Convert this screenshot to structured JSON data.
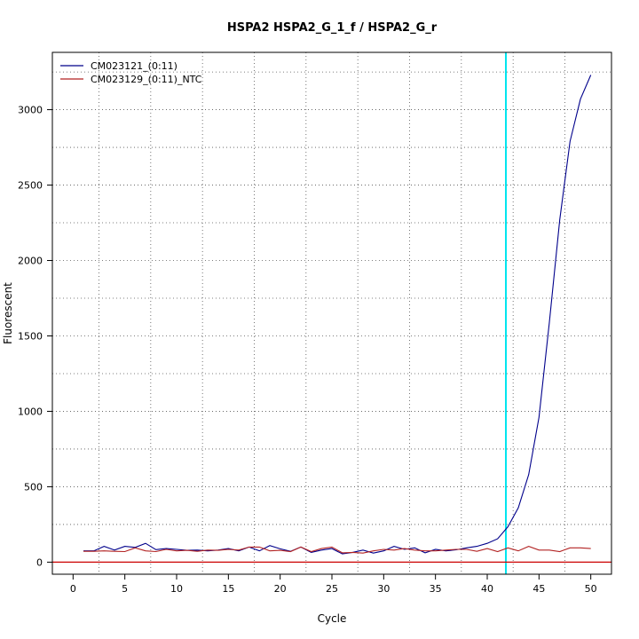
{
  "chart_data": {
    "type": "line",
    "title": "HSPA2  HSPA2_G_1_f / HSPA2_G_r",
    "xlabel": "Cycle",
    "ylabel": "Fluorescent",
    "xlim": [
      -2,
      52
    ],
    "ylim": [
      -80,
      3380
    ],
    "x_ticks": [
      0,
      5,
      10,
      15,
      20,
      25,
      30,
      35,
      40,
      45,
      50
    ],
    "y_ticks": [
      0,
      500,
      1000,
      1500,
      2000,
      2500,
      3000
    ],
    "grid": true,
    "legend_position": "top-left",
    "threshold_x": 41.8,
    "threshold_color": "#00e5ee",
    "baseline_y": 0,
    "baseline_color": "#cc0000",
    "series": [
      {
        "name": "CM023121_(0:11)",
        "color": "#00008b",
        "x": [
          1,
          2,
          3,
          4,
          5,
          6,
          7,
          8,
          9,
          10,
          11,
          12,
          13,
          14,
          15,
          16,
          17,
          18,
          19,
          20,
          21,
          22,
          23,
          24,
          25,
          26,
          27,
          28,
          29,
          30,
          31,
          32,
          33,
          34,
          35,
          36,
          37,
          38,
          39,
          40,
          41,
          42,
          43,
          44,
          45,
          46,
          47,
          48,
          49,
          50
        ],
        "values": [
          75,
          75,
          105,
          80,
          105,
          98,
          125,
          83,
          90,
          85,
          78,
          80,
          75,
          80,
          90,
          75,
          100,
          75,
          110,
          88,
          72,
          100,
          65,
          80,
          90,
          55,
          65,
          80,
          60,
          75,
          105,
          85,
          95,
          62,
          85,
          75,
          82,
          95,
          105,
          125,
          155,
          235,
          360,
          580,
          960,
          1590,
          2270,
          2790,
          3070,
          3230
        ]
      },
      {
        "name": "CM023129_(0:11)_NTC",
        "color": "#b22222",
        "x": [
          1,
          2,
          3,
          4,
          5,
          6,
          7,
          8,
          9,
          10,
          11,
          12,
          13,
          14,
          15,
          16,
          17,
          18,
          19,
          20,
          21,
          22,
          23,
          24,
          25,
          26,
          27,
          28,
          29,
          30,
          31,
          32,
          33,
          34,
          35,
          36,
          37,
          38,
          39,
          40,
          41,
          42,
          43,
          44,
          45,
          46,
          47,
          48,
          49,
          50
        ],
        "values": [
          72,
          72,
          75,
          72,
          70,
          95,
          75,
          70,
          85,
          75,
          78,
          72,
          80,
          78,
          85,
          80,
          100,
          100,
          75,
          78,
          70,
          100,
          70,
          90,
          100,
          62,
          65,
          60,
          75,
          85,
          80,
          90,
          80,
          75,
          75,
          80,
          85,
          85,
          72,
          90,
          70,
          95,
          75,
          105,
          80,
          80,
          70,
          95,
          95,
          90
        ]
      }
    ]
  }
}
